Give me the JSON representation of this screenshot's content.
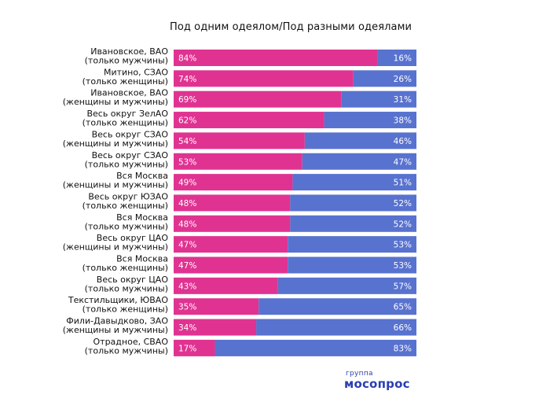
{
  "colors": {
    "series_1": "#e03391",
    "series_2": "#5872cf",
    "logo": "#2a3fb0"
  },
  "chart_data": {
    "type": "bar",
    "orientation": "horizontal-stacked-100",
    "title": "Под одним одеялом/Под разными одеялами",
    "categories": [
      [
        "Ивановское, ВАО",
        "(только мужчины)"
      ],
      [
        "Митино, СЗАО",
        "(только женщины)"
      ],
      [
        "Ивановское, ВАО",
        "(женщины и  мужчины)"
      ],
      [
        "Весь округ ЗелАО",
        "(только женщины)"
      ],
      [
        "Весь округ СЗАО",
        "(женщины и  мужчины)"
      ],
      [
        "Весь округ СЗАО",
        "(только мужчины)"
      ],
      [
        "Вся Москва",
        "(женщины и мужчины)"
      ],
      [
        "Весь округ ЮЗАО",
        "(только женщины)"
      ],
      [
        "Вся Москва",
        "(только мужчины)"
      ],
      [
        "Весь округ ЦАО",
        "(женщины и  мужчины)"
      ],
      [
        "Вся Москва",
        "(только женщины)"
      ],
      [
        "Весь округ ЦАО",
        "(только мужчины)"
      ],
      [
        "Текстильщики, ЮВАО",
        "(только женщины)"
      ],
      [
        "Фили-Давыдково, ЗАО",
        "(женщины и  мужчины)"
      ],
      [
        "Отрадное, СВАО",
        "(только мужчины)"
      ]
    ],
    "series": [
      {
        "values": [
          84,
          74,
          69,
          62,
          54,
          53,
          49,
          48,
          48,
          47,
          47,
          43,
          35,
          34,
          17
        ]
      },
      {
        "values": [
          16,
          26,
          31,
          38,
          46,
          47,
          51,
          52,
          52,
          53,
          53,
          57,
          65,
          66,
          83
        ]
      }
    ],
    "value_suffix": "%",
    "xlim": [
      0,
      100
    ],
    "grid": false,
    "legend": "none"
  },
  "logo": {
    "top_text": "группа",
    "main_text": "мосопрос"
  }
}
